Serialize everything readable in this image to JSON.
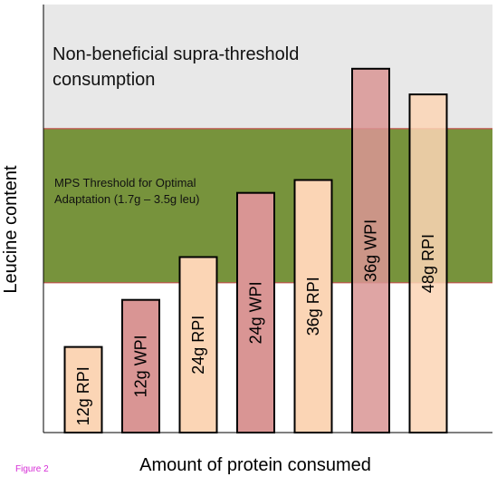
{
  "figure_label": "Figure 2",
  "chart_data": {
    "type": "bar",
    "title": "",
    "xlabel": "Amount of protein consumed",
    "ylabel": "Leucine content",
    "ylim": [
      0,
      10
    ],
    "grid": false,
    "categories": [
      "12g RPI",
      "12g WPI",
      "24g RPI",
      "24g WPI",
      "36g RPI",
      "36g WPI",
      "48g RPI"
    ],
    "values": [
      2.0,
      3.1,
      4.1,
      5.6,
      5.9,
      8.5,
      7.9
    ],
    "bar_colors": [
      "#fbd5b5",
      "#d99594",
      "#fbd5b5",
      "#d99594",
      "#fbd5b5",
      "#d99594",
      "#fbd5b5"
    ],
    "bands": [
      {
        "label": "Non-beneficial supra-threshold consumption",
        "from": 7.1,
        "to": 10.0,
        "color": "#e8e8e8"
      },
      {
        "label": "MPS Threshold for Optimal Adaptation (1.7g – 3.5g leu)",
        "from": 3.5,
        "to": 7.1,
        "color": "#77933c"
      }
    ],
    "threshold_line_color": "#c0504d"
  }
}
